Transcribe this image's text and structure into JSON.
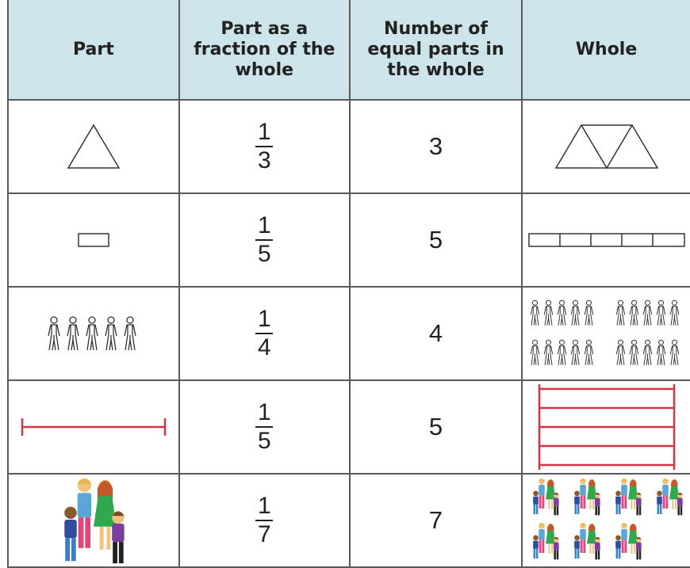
{
  "table": {
    "header": [
      "Part",
      "Part as a fraction of the whole",
      "Number of equal parts in the whole",
      "Whole"
    ],
    "rows": [
      {
        "numerator": "1",
        "denominator": "3",
        "parts": "3"
      },
      {
        "numerator": "1",
        "denominator": "5",
        "parts": "5"
      },
      {
        "numerator": "1",
        "denominator": "4",
        "parts": "4"
      },
      {
        "numerator": "1",
        "denominator": "5",
        "parts": "5"
      },
      {
        "numerator": "1",
        "denominator": "7",
        "parts": "7"
      }
    ]
  }
}
